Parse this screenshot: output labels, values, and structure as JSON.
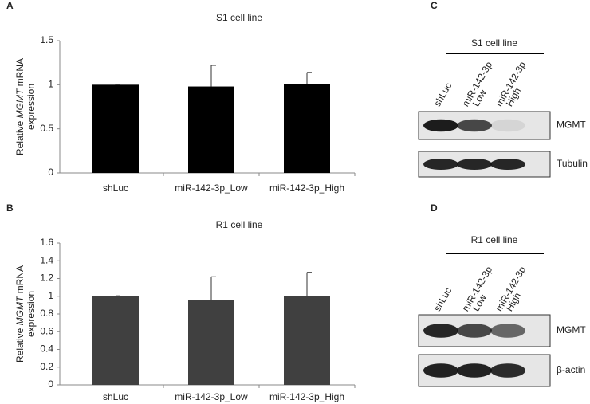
{
  "chart_data": [
    {
      "type": "bar",
      "panel": "A",
      "title": "S1 cell line",
      "ylabel": {
        "before": "Relative ",
        "italic": "MGMT",
        "after": " mRNA",
        "line2": "expression"
      },
      "categories": [
        "shLuc",
        "miR-142-3p_Low",
        "miR-142-3p_High"
      ],
      "values": [
        1,
        0.98,
        1.01
      ],
      "errors": [
        0.005,
        0.24,
        0.13
      ],
      "color": "#000000",
      "ylim": [
        0,
        1.5
      ],
      "yticks": [
        0,
        0.5,
        1,
        1.5
      ]
    },
    {
      "type": "bar",
      "panel": "B",
      "title": "R1 cell line",
      "ylabel": {
        "before": "Relative ",
        "italic": "MGMT",
        "after": " mRNA",
        "line2": "expression"
      },
      "categories": [
        "shLuc",
        "miR-142-3p_Low",
        "miR-142-3p_High"
      ],
      "values": [
        1,
        0.96,
        1.0
      ],
      "errors": [
        0.005,
        0.26,
        0.27
      ],
      "color": "#404040",
      "ylim": [
        0,
        1.6
      ],
      "yticks": [
        0,
        0.2,
        0.4,
        0.6,
        0.8,
        1,
        1.2,
        1.4,
        1.6
      ]
    }
  ],
  "blots": [
    {
      "panel": "C",
      "title": "S1 cell line",
      "lanes": [
        [
          "shLuc"
        ],
        [
          "miR-142-3p",
          "Low"
        ],
        [
          "miR-142-3p",
          "High"
        ]
      ],
      "bands": [
        "MGMT",
        "Tubulin"
      ]
    },
    {
      "panel": "D",
      "title": "R1 cell line",
      "lanes": [
        [
          "shLuc"
        ],
        [
          "miR-142-3p",
          "Low"
        ],
        [
          "miR-142-3p",
          "High"
        ]
      ],
      "bands": [
        "MGMT",
        "β-actin"
      ]
    }
  ]
}
